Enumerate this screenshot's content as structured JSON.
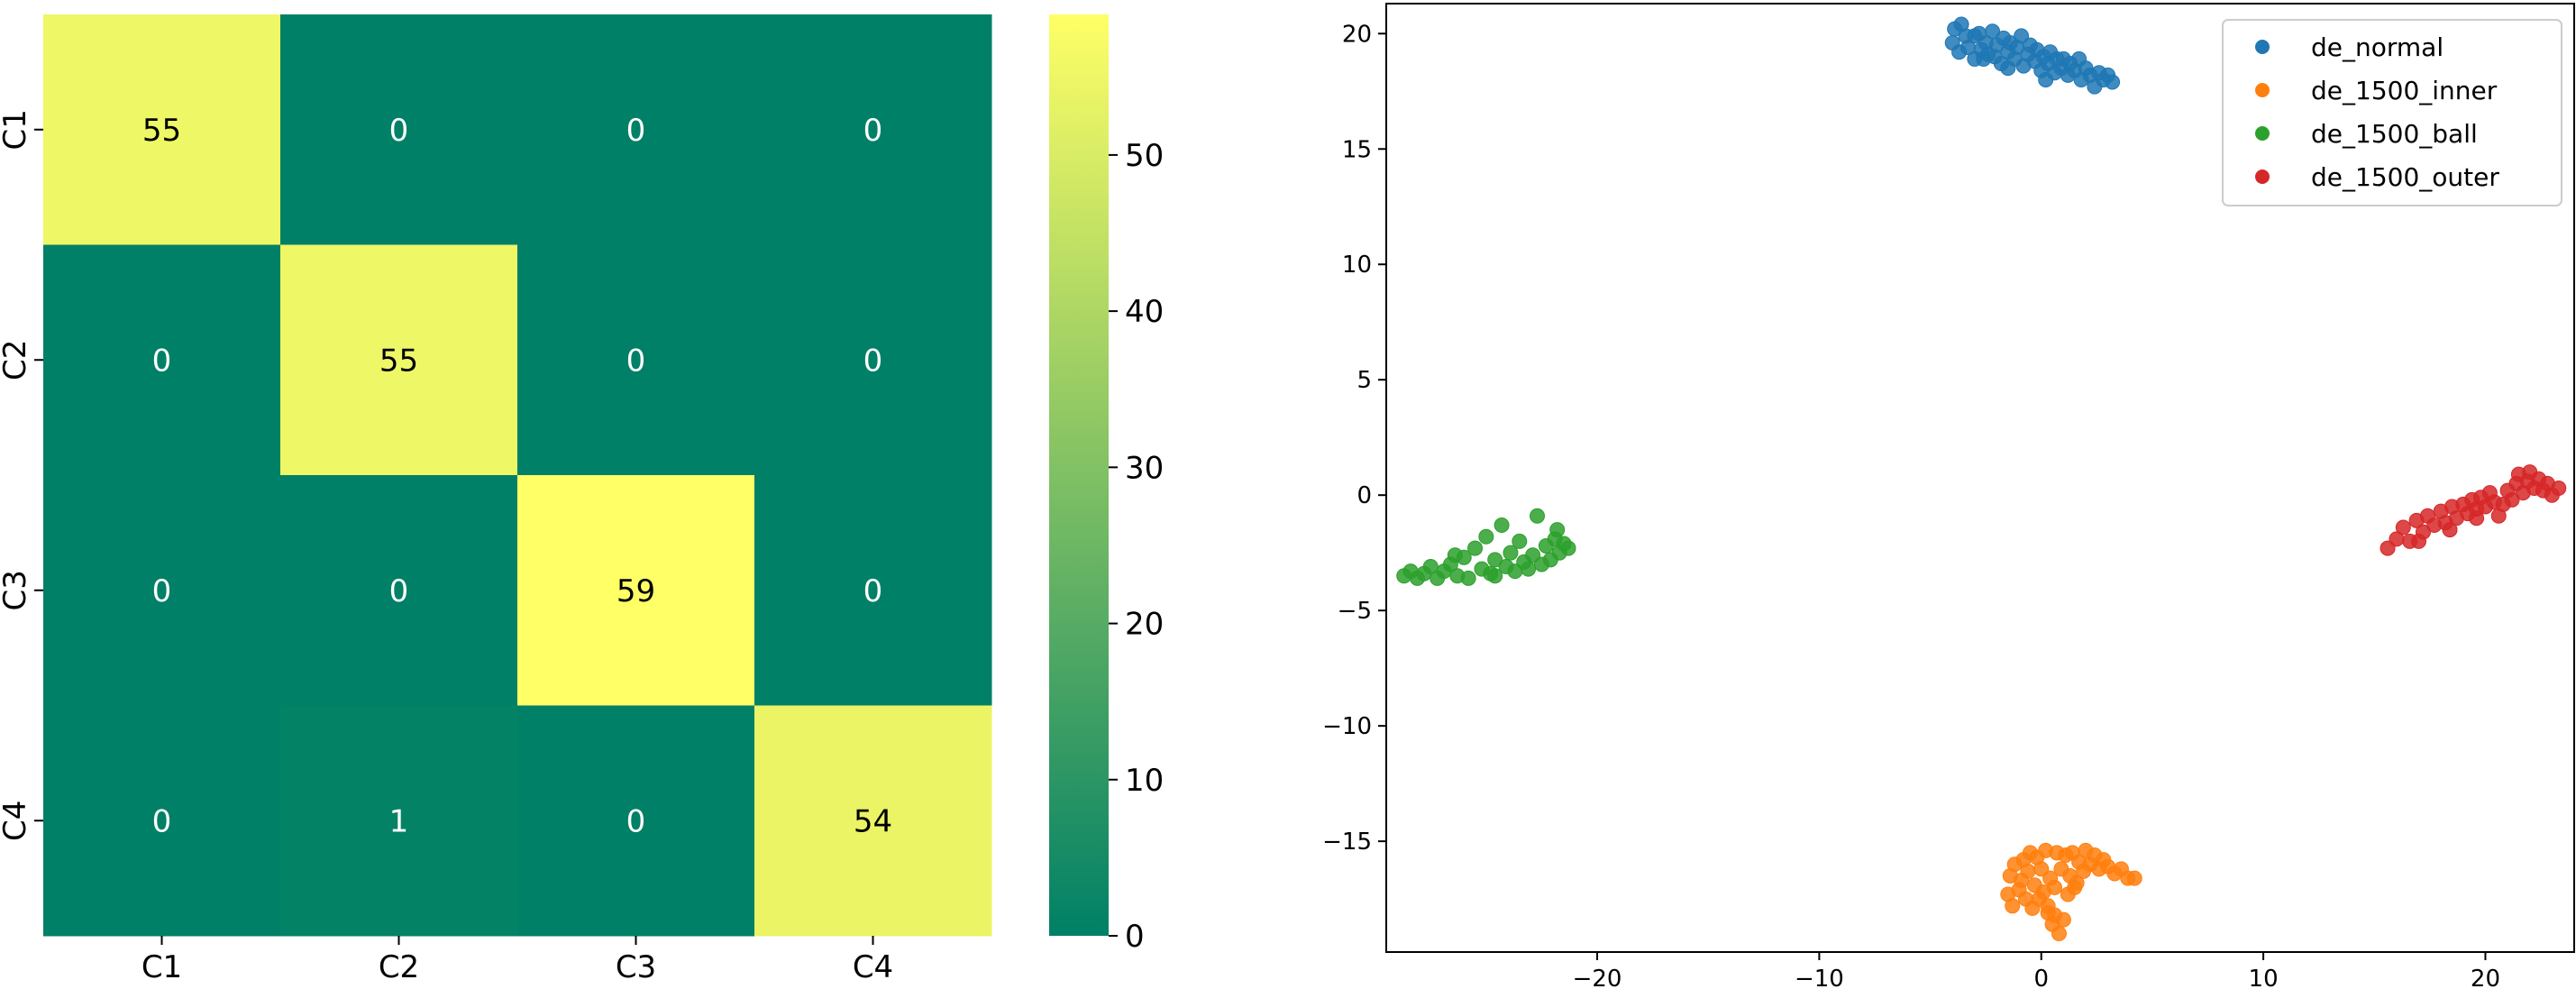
{
  "chart_data": [
    {
      "type": "heatmap",
      "title": "",
      "xlabel": "",
      "ylabel": "",
      "x_categories": [
        "C1",
        "C2",
        "C3",
        "C4"
      ],
      "y_categories": [
        "C1",
        "C2",
        "C3",
        "C4"
      ],
      "values": [
        [
          55,
          0,
          0,
          0
        ],
        [
          0,
          55,
          0,
          0
        ],
        [
          0,
          0,
          59,
          0
        ],
        [
          0,
          1,
          0,
          54
        ]
      ],
      "colormap": [
        "#008066",
        "#40a064",
        "#80c064",
        "#c0e064",
        "#ffff66"
      ],
      "colorbar": {
        "range": [
          0,
          59
        ],
        "ticks": [
          0,
          10,
          20,
          30,
          40,
          50
        ]
      },
      "annotation_colors": {
        "dark": "#ffffff",
        "light": "#000000"
      }
    },
    {
      "type": "scatter",
      "title": "",
      "xlabel": "",
      "ylabel": "",
      "xlim": [
        -29.5,
        24
      ],
      "ylim": [
        -19.8,
        21.3
      ],
      "xticks": [
        -20,
        -10,
        0,
        10,
        20
      ],
      "yticks": [
        -15,
        -10,
        -5,
        0,
        5,
        10,
        15,
        20
      ],
      "legend_position": "top-right",
      "series": [
        {
          "name": "de_normal",
          "color": "#1f77b4",
          "points": [
            [
              -4.0,
              19.6
            ],
            [
              -3.9,
              20.2
            ],
            [
              -3.7,
              19.2
            ],
            [
              -3.6,
              20.4
            ],
            [
              -3.4,
              19.9
            ],
            [
              -3.3,
              19.4
            ],
            [
              -3.0,
              18.9
            ],
            [
              -3.0,
              19.9
            ],
            [
              -2.8,
              20.0
            ],
            [
              -2.7,
              19.3
            ],
            [
              -2.5,
              19.6
            ],
            [
              -2.4,
              19.1
            ],
            [
              -2.2,
              20.1
            ],
            [
              -2.1,
              19.0
            ],
            [
              -2.0,
              19.5
            ],
            [
              -1.8,
              18.7
            ],
            [
              -1.7,
              19.8
            ],
            [
              -1.5,
              19.2
            ],
            [
              -1.4,
              19.6
            ],
            [
              -1.2,
              18.9
            ],
            [
              -1.1,
              19.4
            ],
            [
              -0.9,
              19.9
            ],
            [
              -0.8,
              18.6
            ],
            [
              -0.6,
              19.1
            ],
            [
              -0.5,
              19.5
            ],
            [
              -0.3,
              18.8
            ],
            [
              -0.2,
              19.3
            ],
            [
              0.0,
              18.4
            ],
            [
              0.1,
              19.0
            ],
            [
              0.3,
              18.7
            ],
            [
              0.4,
              19.2
            ],
            [
              0.6,
              18.3
            ],
            [
              0.7,
              18.9
            ],
            [
              0.9,
              18.5
            ],
            [
              1.0,
              18.9
            ],
            [
              1.2,
              18.2
            ],
            [
              1.3,
              18.7
            ],
            [
              1.5,
              18.4
            ],
            [
              1.7,
              18.9
            ],
            [
              1.8,
              18.0
            ],
            [
              2.0,
              18.5
            ],
            [
              2.2,
              18.2
            ],
            [
              2.4,
              17.7
            ],
            [
              2.6,
              18.3
            ],
            [
              2.8,
              18.0
            ],
            [
              3.0,
              18.2
            ],
            [
              3.2,
              17.9
            ],
            [
              -1.5,
              18.5
            ],
            [
              -2.6,
              18.9
            ],
            [
              0.2,
              18.0
            ]
          ]
        },
        {
          "name": "de_1500_inner",
          "color": "#ff7f0e",
          "points": [
            [
              -1.5,
              -17.3
            ],
            [
              -1.4,
              -16.5
            ],
            [
              -1.3,
              -17.8
            ],
            [
              -1.2,
              -16.0
            ],
            [
              -1.0,
              -17.1
            ],
            [
              -0.9,
              -16.7
            ],
            [
              -0.8,
              -15.8
            ],
            [
              -0.7,
              -17.5
            ],
            [
              -0.6,
              -16.3
            ],
            [
              -0.5,
              -15.5
            ],
            [
              -0.4,
              -17.9
            ],
            [
              -0.3,
              -16.9
            ],
            [
              -0.2,
              -15.7
            ],
            [
              0.0,
              -16.2
            ],
            [
              0.1,
              -17.2
            ],
            [
              0.2,
              -15.4
            ],
            [
              0.3,
              -18.1
            ],
            [
              0.4,
              -16.6
            ],
            [
              0.5,
              -18.6
            ],
            [
              0.6,
              -17.0
            ],
            [
              0.7,
              -15.5
            ],
            [
              0.8,
              -19.0
            ],
            [
              0.9,
              -16.2
            ],
            [
              1.0,
              -18.4
            ],
            [
              1.1,
              -15.6
            ],
            [
              1.2,
              -17.3
            ],
            [
              1.3,
              -16.5
            ],
            [
              1.4,
              -15.5
            ],
            [
              1.6,
              -16.8
            ],
            [
              1.7,
              -15.9
            ],
            [
              1.9,
              -16.3
            ],
            [
              2.0,
              -15.4
            ],
            [
              2.2,
              -16.0
            ],
            [
              2.4,
              -15.6
            ],
            [
              2.6,
              -16.2
            ],
            [
              2.8,
              -15.8
            ],
            [
              3.0,
              -16.1
            ],
            [
              3.3,
              -16.4
            ],
            [
              3.6,
              -16.2
            ],
            [
              3.9,
              -16.6
            ],
            [
              4.2,
              -16.6
            ],
            [
              0.3,
              -17.8
            ],
            [
              -0.1,
              -17.5
            ],
            [
              1.5,
              -17.0
            ],
            [
              0.6,
              -18.2
            ]
          ]
        },
        {
          "name": "de_1500_ball",
          "color": "#2ca02c",
          "points": [
            [
              -28.7,
              -3.5
            ],
            [
              -28.4,
              -3.3
            ],
            [
              -28.1,
              -3.6
            ],
            [
              -27.8,
              -3.4
            ],
            [
              -27.5,
              -3.1
            ],
            [
              -27.2,
              -3.6
            ],
            [
              -26.9,
              -3.3
            ],
            [
              -26.6,
              -3.0
            ],
            [
              -26.3,
              -3.5
            ],
            [
              -26.0,
              -2.7
            ],
            [
              -25.8,
              -3.6
            ],
            [
              -25.5,
              -2.3
            ],
            [
              -25.2,
              -3.2
            ],
            [
              -25.0,
              -1.8
            ],
            [
              -24.8,
              -3.4
            ],
            [
              -24.6,
              -2.8
            ],
            [
              -24.3,
              -1.3
            ],
            [
              -24.1,
              -3.1
            ],
            [
              -23.9,
              -2.5
            ],
            [
              -23.7,
              -3.3
            ],
            [
              -23.5,
              -2.0
            ],
            [
              -23.3,
              -2.9
            ],
            [
              -23.1,
              -3.2
            ],
            [
              -22.9,
              -2.6
            ],
            [
              -22.7,
              -0.9
            ],
            [
              -22.5,
              -3.0
            ],
            [
              -22.3,
              -2.2
            ],
            [
              -22.1,
              -2.8
            ],
            [
              -21.9,
              -1.9
            ],
            [
              -21.7,
              -2.5
            ],
            [
              -21.5,
              -2.1
            ],
            [
              -21.3,
              -2.3
            ],
            [
              -24.6,
              -3.5
            ],
            [
              -26.4,
              -2.6
            ],
            [
              -21.8,
              -1.5
            ]
          ]
        },
        {
          "name": "de_1500_outer",
          "color": "#d62728",
          "points": [
            [
              15.6,
              -2.3
            ],
            [
              16.0,
              -1.9
            ],
            [
              16.3,
              -1.4
            ],
            [
              16.6,
              -2.0
            ],
            [
              16.9,
              -1.1
            ],
            [
              17.2,
              -1.6
            ],
            [
              17.4,
              -0.9
            ],
            [
              17.7,
              -1.3
            ],
            [
              18.0,
              -0.7
            ],
            [
              18.2,
              -1.2
            ],
            [
              18.5,
              -0.5
            ],
            [
              18.7,
              -1.0
            ],
            [
              19.0,
              -0.4
            ],
            [
              19.2,
              -0.8
            ],
            [
              19.4,
              -0.2
            ],
            [
              19.6,
              -0.6
            ],
            [
              19.8,
              -0.1
            ],
            [
              20.0,
              -0.5
            ],
            [
              20.2,
              0.1
            ],
            [
              20.4,
              -0.3
            ],
            [
              20.6,
              -0.9
            ],
            [
              20.8,
              -0.4
            ],
            [
              21.0,
              0.2
            ],
            [
              21.2,
              -0.2
            ],
            [
              21.4,
              0.5
            ],
            [
              21.5,
              0.9
            ],
            [
              21.7,
              0.1
            ],
            [
              21.9,
              0.6
            ],
            [
              22.0,
              1.0
            ],
            [
              22.2,
              0.3
            ],
            [
              22.4,
              0.7
            ],
            [
              22.6,
              0.2
            ],
            [
              22.8,
              0.5
            ],
            [
              23.0,
              0.0
            ],
            [
              23.3,
              0.3
            ],
            [
              18.4,
              -1.5
            ],
            [
              19.6,
              -1.0
            ],
            [
              17.0,
              -2.0
            ]
          ]
        }
      ]
    }
  ]
}
